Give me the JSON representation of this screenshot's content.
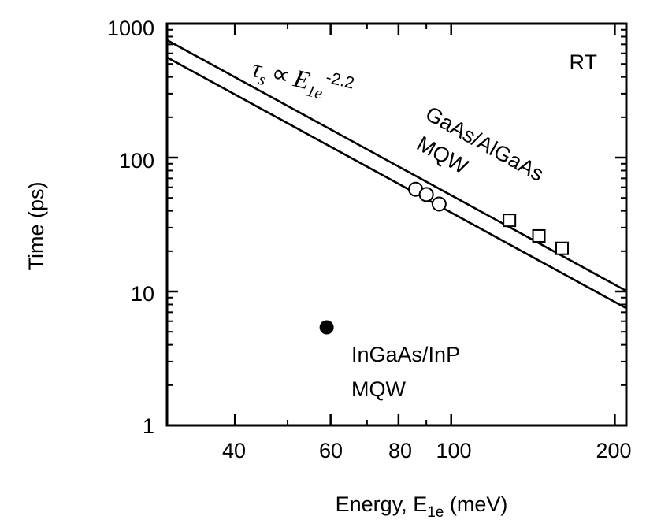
{
  "chart_data": {
    "type": "scatter",
    "xscale": "log",
    "yscale": "log",
    "xlim": [
      30,
      210
    ],
    "ylim": [
      1,
      1000
    ],
    "xticks": [
      40,
      60,
      80,
      100,
      200
    ],
    "xtick_labels": [
      "40",
      "60",
      "80",
      "100",
      "200"
    ],
    "yticks": [
      1,
      10,
      100,
      1000
    ],
    "ytick_labels": [
      "1",
      "10",
      "100",
      "1000"
    ],
    "xlabel": {
      "main": "Energy, E",
      "sub": "1e",
      "unit": " (meV)"
    },
    "ylabel": "Time (ps)",
    "grid": false,
    "legend": "none",
    "series": [
      {
        "name": "GaAs/AlGaAs MQW",
        "marker": "open-circle",
        "x": [
          86,
          90,
          95
        ],
        "y": [
          58,
          53,
          45
        ]
      },
      {
        "name": "GaAs/AlGaAs MQW",
        "marker": "open-square",
        "x": [
          128,
          145,
          160
        ],
        "y": [
          34,
          26,
          21
        ]
      },
      {
        "name": "InGaAs/InP MQW",
        "marker": "filled-circle",
        "x": [
          59
        ],
        "y": [
          5.4
        ]
      }
    ],
    "fit_lines": [
      {
        "exponent": -2.2,
        "x": [
          30,
          210
        ],
        "y": [
          754,
          10.1
        ]
      },
      {
        "exponent": -2.2,
        "x": [
          30,
          210
        ],
        "y": [
          560,
          7.5
        ]
      }
    ],
    "annotations": {
      "rt": "RT",
      "formula": {
        "tau": "τ",
        "tau_sub": "s",
        "prop": "∝",
        "e": "E",
        "e_sub": "1e",
        "exponent": "-2.2"
      },
      "gaas_line1": "GaAs/AlGaAs",
      "gaas_line2": "MQW",
      "ingaas_line1": "InGaAs/InP",
      "ingaas_line2": "MQW"
    }
  }
}
